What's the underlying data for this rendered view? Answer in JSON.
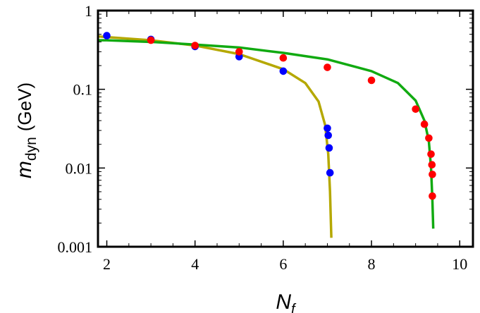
{
  "chart_data": {
    "type": "scatter",
    "title": "",
    "xlabel": "N",
    "xlabel_sub": "f",
    "ylabel": "m",
    "ylabel_sub": "dyn",
    "ylabel_unit": "(GeV)",
    "xlim": [
      1.8,
      10.3
    ],
    "ylim": [
      0.001,
      1
    ],
    "yscale": "log",
    "grid": false,
    "legend": "none",
    "x_ticks": [
      2,
      4,
      6,
      8,
      10
    ],
    "y_ticks": [
      0.001,
      0.01,
      0.1,
      1
    ],
    "x_tick_labels": [
      "2",
      "4",
      "6",
      "8",
      "10"
    ],
    "y_tick_labels": [
      "0.001",
      "0.01",
      "0.1",
      "1"
    ],
    "series": [
      {
        "kind": "points",
        "color": "#0000ff",
        "x": [
          2,
          3,
          4,
          5,
          6,
          7.0,
          7.02,
          7.04,
          7.06
        ],
        "y": [
          0.48,
          0.43,
          0.35,
          0.26,
          0.17,
          0.032,
          0.026,
          0.018,
          0.0087
        ]
      },
      {
        "kind": "points",
        "color": "#ff0000",
        "x": [
          3,
          4,
          5,
          6,
          7,
          8,
          9,
          9.2,
          9.3,
          9.35,
          9.37,
          9.38,
          9.38
        ],
        "y": [
          0.42,
          0.36,
          0.3,
          0.25,
          0.19,
          0.13,
          0.056,
          0.036,
          0.024,
          0.015,
          0.011,
          0.0083,
          0.0044
        ]
      },
      {
        "kind": "line",
        "color": "#b5a800",
        "x": [
          1.8,
          2,
          3,
          4,
          5,
          6,
          6.5,
          6.8,
          6.95,
          7.02,
          7.06,
          7.08,
          7.09
        ],
        "y": [
          0.47,
          0.46,
          0.42,
          0.36,
          0.28,
          0.18,
          0.12,
          0.07,
          0.035,
          0.015,
          0.005,
          0.002,
          0.0013
        ]
      },
      {
        "kind": "line",
        "color": "#11aa11",
        "x": [
          1.8,
          2,
          3,
          4,
          5,
          6,
          7,
          8,
          8.6,
          9.0,
          9.2,
          9.3,
          9.35,
          9.38,
          9.4
        ],
        "y": [
          0.42,
          0.42,
          0.4,
          0.37,
          0.34,
          0.29,
          0.24,
          0.17,
          0.12,
          0.072,
          0.04,
          0.022,
          0.01,
          0.004,
          0.0017
        ]
      }
    ]
  }
}
